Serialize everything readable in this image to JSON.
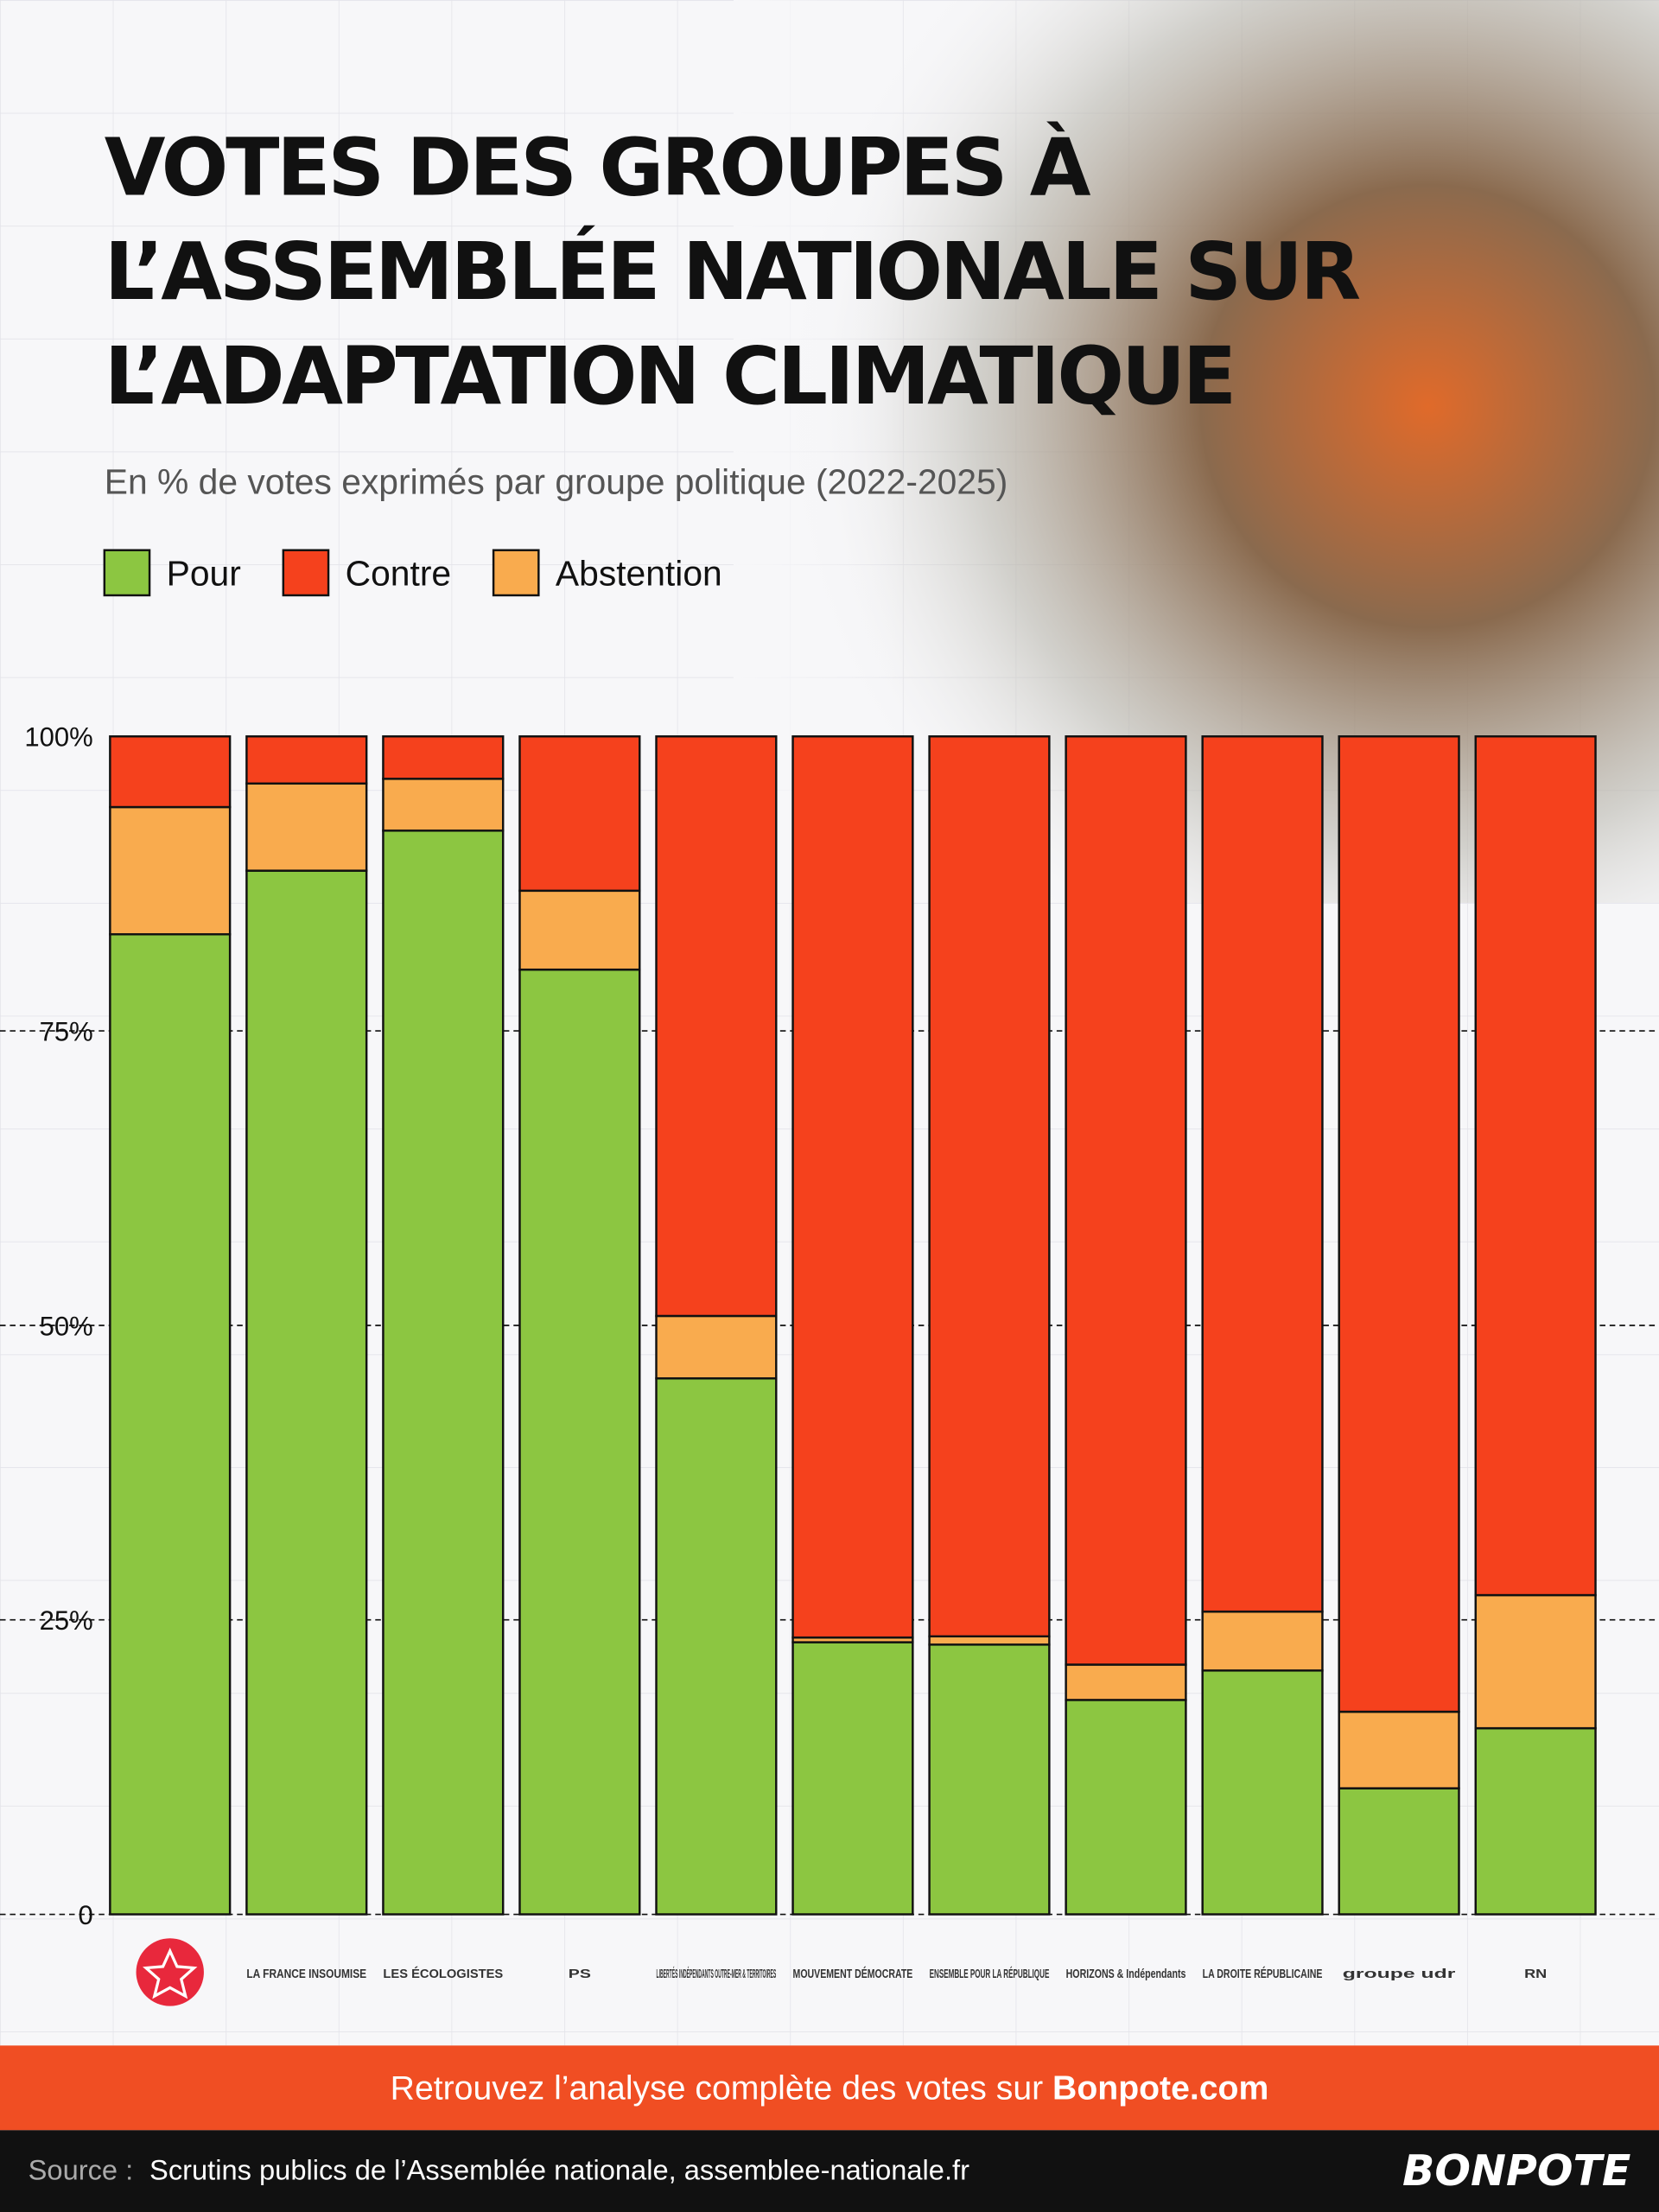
{
  "chart_data": {
    "type": "stacked_bar",
    "title": [
      "VOTES DES GROUPES À",
      "L’ASSEMBLÉE NATIONALE SUR",
      "L’ADAPTATION CLIMATIQUE"
    ],
    "subtitle": "En % de votes exprimés par groupe politique (2022-2025)",
    "categories": [
      null,
      "LA FRANCE INSOUMISE",
      "LES ÉCOLOGISTES",
      "PS",
      "LIBERTÉS INDÉPENDANTS OUTRE-MER & TERRITOIRES",
      "MOUVEMENT DÉMOCRATE",
      "ENSEMBLE POUR LA RÉPUBLIQUE",
      "HORIZONS & Indépendants",
      "LA DROITE RÉPUBLICAINE",
      "groupe udr",
      "RN"
    ],
    "series": [
      {
        "name": "Pour",
        "color": "#8cc641",
        "values": [
          83.2,
          88.6,
          92.0,
          80.2,
          45.5,
          23.1,
          22.9,
          18.2,
          20.7,
          10.7,
          15.8
        ]
      },
      {
        "name": "Contre",
        "color": "#f5411d",
        "values": [
          6.0,
          4.0,
          3.6,
          13.1,
          49.2,
          76.5,
          76.4,
          78.8,
          74.3,
          82.8,
          72.9
        ]
      },
      {
        "name": "Abstention",
        "color": "#f9ab4e",
        "values": [
          10.8,
          7.4,
          4.4,
          6.7,
          5.3,
          0.4,
          0.7,
          3.0,
          5.0,
          6.5,
          11.3
        ]
      }
    ],
    "ylim": [
      0,
      100
    ],
    "yticks": [
      0,
      {
        "value": 25,
        "label": "25%"
      },
      {
        "value": 50,
        "label": "50%"
      },
      {
        "value": 75,
        "label": "75%"
      },
      {
        "value": 100,
        "label": "100%"
      }
    ],
    "grid": true
  },
  "banner": {
    "text": "Retrouvez l’analyse complète des votes sur ",
    "link": "Bonpote.com"
  },
  "footer": {
    "source_label": "Source :",
    "source": "Scrutins publics de l’Assemblée nationale, assemblee-nationale.fr",
    "brand": "BONPOTE"
  }
}
